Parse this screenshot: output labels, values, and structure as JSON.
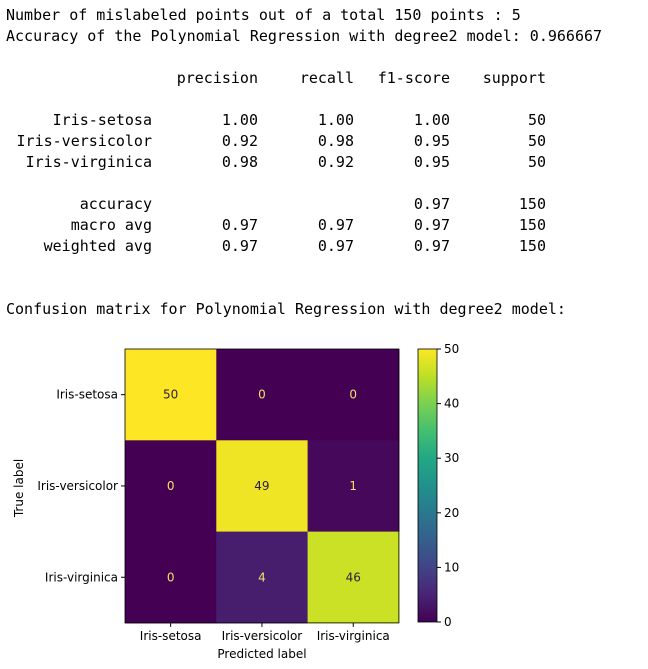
{
  "output": {
    "mislabeled_line": "Number of mislabeled points out of a total 150 points : 5",
    "accuracy_line": "Accuracy of the Polynomial Regression with degree2 model: 0.966667",
    "report": {
      "headers": [
        "precision",
        "recall",
        "f1-score",
        "support"
      ],
      "rows": [
        {
          "label": "Iris-setosa",
          "precision": "1.00",
          "recall": "1.00",
          "f1": "1.00",
          "support": "50"
        },
        {
          "label": "Iris-versicolor",
          "precision": "0.92",
          "recall": "0.98",
          "f1": "0.95",
          "support": "50"
        },
        {
          "label": "Iris-virginica",
          "precision": "0.98",
          "recall": "0.92",
          "f1": "0.95",
          "support": "50"
        }
      ],
      "summary": [
        {
          "label": "accuracy",
          "precision": "",
          "recall": "",
          "f1": "0.97",
          "support": "150"
        },
        {
          "label": "macro avg",
          "precision": "0.97",
          "recall": "0.97",
          "f1": "0.97",
          "support": "150"
        },
        {
          "label": "weighted avg",
          "precision": "0.97",
          "recall": "0.97",
          "f1": "0.97",
          "support": "150"
        }
      ]
    },
    "confusion_title": "Confusion matrix for Polynomial Regression with degree2 model:"
  },
  "chart_data": {
    "type": "heatmap",
    "title": "",
    "xlabel": "Predicted label",
    "ylabel": "True label",
    "x_categories": [
      "Iris-setosa",
      "Iris-versicolor",
      "Iris-virginica"
    ],
    "y_categories": [
      "Iris-setosa",
      "Iris-versicolor",
      "Iris-virginica"
    ],
    "matrix": [
      [
        50,
        0,
        0
      ],
      [
        0,
        49,
        1
      ],
      [
        0,
        4,
        46
      ]
    ],
    "colormap": "viridis",
    "colorbar": {
      "min": 0,
      "max": 50,
      "ticks": [
        0,
        10,
        20,
        30,
        40,
        50
      ]
    }
  }
}
